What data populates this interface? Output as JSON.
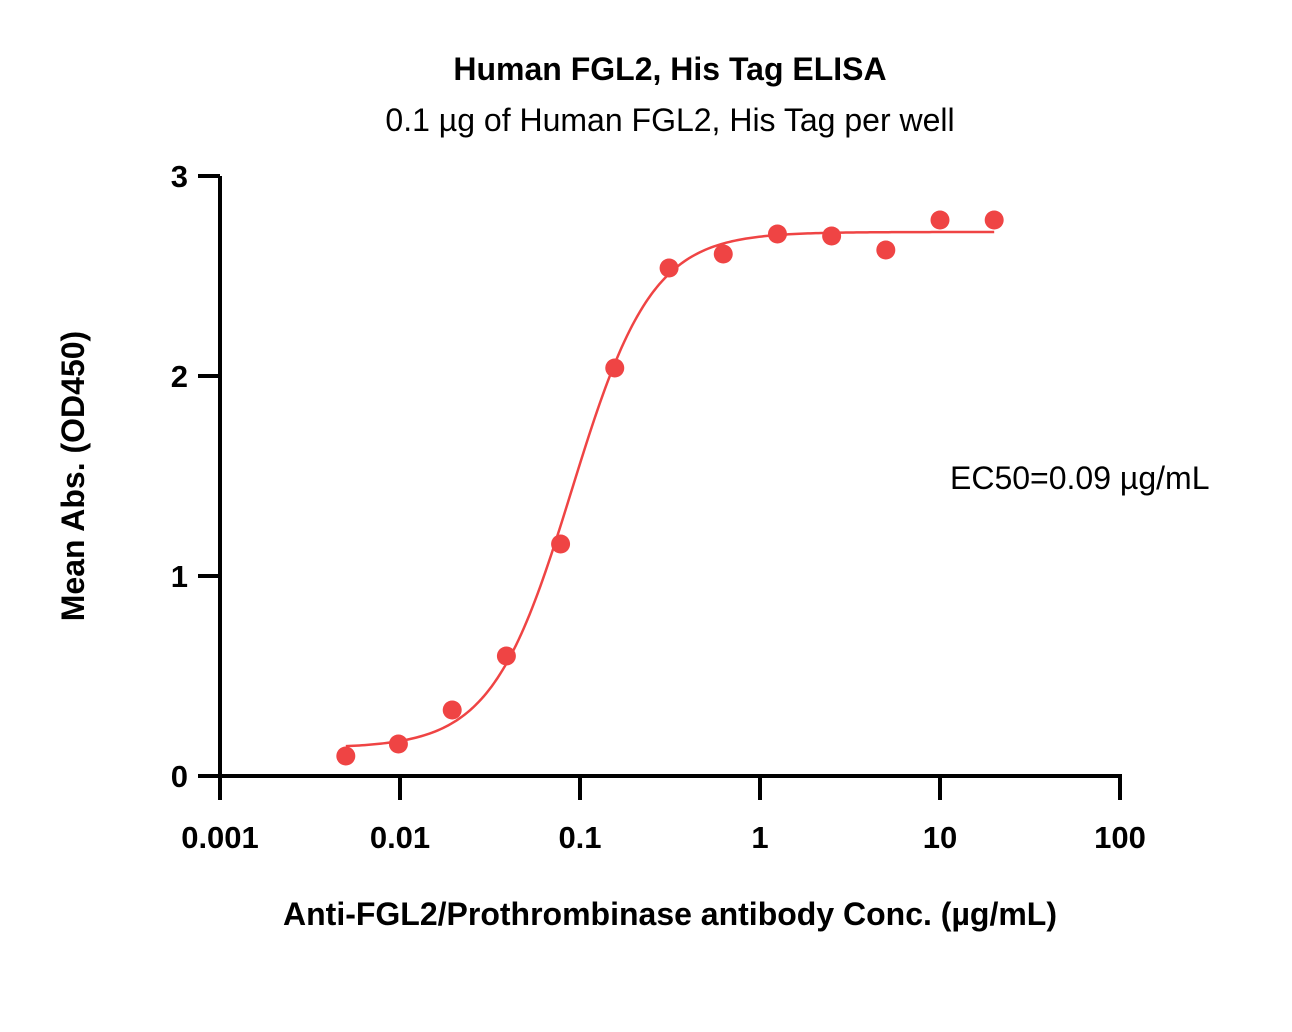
{
  "chart_data": {
    "type": "scatter",
    "title": "Human FGL2, His Tag ELISA",
    "subtitle": "0.1 µg of Human FGL2, His Tag per well",
    "xlabel": "Anti-FGL2/Prothrombinase antibody Conc. (µg/mL)",
    "ylabel": "Mean Abs. (OD450)",
    "x_scale": "log",
    "xlim": [
      0.001,
      100
    ],
    "ylim": [
      0,
      3
    ],
    "x_ticks": [
      0.001,
      0.01,
      0.1,
      1,
      10,
      100
    ],
    "x_tick_labels": [
      "0.001",
      "0.01",
      "0.1",
      "1",
      "10",
      "100"
    ],
    "y_ticks": [
      0,
      1,
      2,
      3
    ],
    "y_tick_labels": [
      "0",
      "1",
      "2",
      "3"
    ],
    "grid": false,
    "annotation": "EC50=0.09 µg/mL",
    "color": "#ef4444",
    "series": [
      {
        "x": [
          0.005,
          0.0098,
          0.0195,
          0.039,
          0.078,
          0.156,
          0.3125,
          0.625,
          1.25,
          2.5,
          5,
          10,
          20
        ],
        "values": [
          0.1,
          0.16,
          0.33,
          0.6,
          1.16,
          2.04,
          2.54,
          2.61,
          2.71,
          2.7,
          2.63,
          2.78,
          2.78
        ]
      }
    ],
    "fit": {
      "model": "4PL",
      "bottom": 0.14,
      "top": 2.72,
      "ec50": 0.09,
      "hill": 1.95,
      "x_range": [
        0.005,
        20
      ]
    }
  }
}
